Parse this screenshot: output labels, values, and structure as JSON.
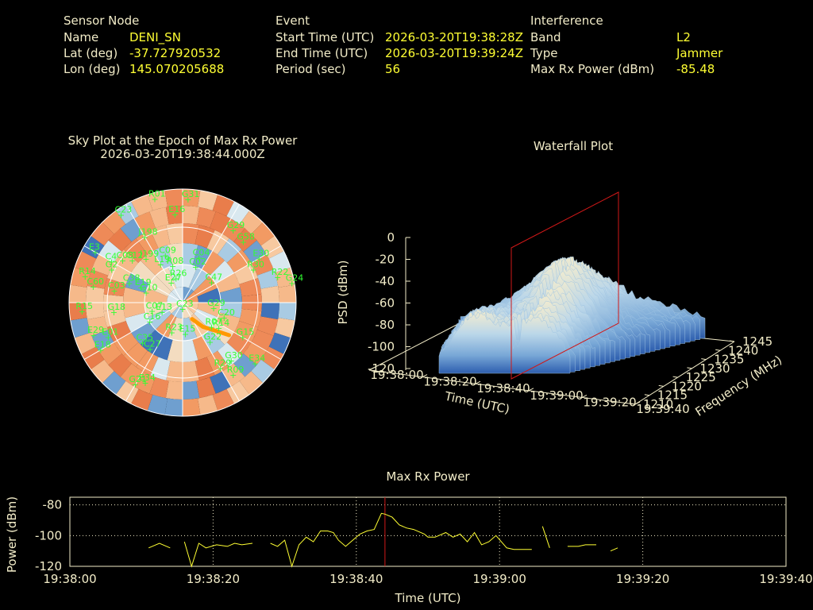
{
  "info": {
    "sensor_header": "Sensor Node",
    "name_label": "Name",
    "name_value": "DENI_SN",
    "lat_label": "Lat (deg)",
    "lat_value": "-37.727920532",
    "lon_label": "Lon (deg)",
    "lon_value": "145.070205688",
    "event_header": "Event",
    "start_label": "Start Time (UTC)",
    "start_value": "2026-03-20T19:38:28Z",
    "end_label": "End Time (UTC)",
    "end_value": "2026-03-20T19:39:24Z",
    "period_label": "Period (sec)",
    "period_value": "56",
    "interf_header": "Interference",
    "band_label": "Band",
    "band_value": "L2",
    "type_label": "Type",
    "type_value": "Jammer",
    "maxrx_label": "Max Rx Power (dBm)",
    "maxrx_value": "-85.48"
  },
  "chart_data": [
    {
      "type": "scatter",
      "title": "Sky Plot at the Epoch of Max Rx Power",
      "subtitle": "2026-03-20T19:38:44.000Z",
      "satellites": [
        {
          "id": "R01",
          "az": 345,
          "el": 5
        },
        {
          "id": "G31",
          "az": 3,
          "el": 8
        },
        {
          "id": "C23",
          "az": 325,
          "el": 5
        },
        {
          "id": "E16",
          "az": 355,
          "el": 20
        },
        {
          "id": "J198",
          "az": 330,
          "el": 30
        },
        {
          "id": "G29",
          "az": 35,
          "el": 20
        },
        {
          "id": "E3",
          "az": 300,
          "el": 10
        },
        {
          "id": "G58",
          "az": 45,
          "el": 22
        },
        {
          "id": "C4",
          "az": 300,
          "el": 25
        },
        {
          "id": "C09",
          "az": 340,
          "el": 50
        },
        {
          "id": "C04",
          "az": 20,
          "el": 52
        },
        {
          "id": "E30",
          "az": 60,
          "el": 20
        },
        {
          "id": "G2",
          "az": 295,
          "el": 28
        },
        {
          "id": "J199",
          "az": 320,
          "el": 45
        },
        {
          "id": "R08",
          "az": 345,
          "el": 60
        },
        {
          "id": "C12",
          "az": 310,
          "el": 38
        },
        {
          "id": "C02",
          "az": 20,
          "el": 60
        },
        {
          "id": "R30",
          "az": 65,
          "el": 28
        },
        {
          "id": "C08",
          "az": 305,
          "el": 32
        },
        {
          "id": "L19",
          "az": 330,
          "el": 55
        },
        {
          "id": "R26",
          "az": 345,
          "el": 70
        },
        {
          "id": "R22",
          "az": 75,
          "el": 12
        },
        {
          "id": "C38",
          "az": 290,
          "el": 45
        },
        {
          "id": "E27",
          "az": 330,
          "el": 72
        },
        {
          "id": "G24",
          "az": 80,
          "el": 2
        },
        {
          "id": "R14",
          "az": 285,
          "el": 10
        },
        {
          "id": "C03",
          "az": 280,
          "el": 35
        },
        {
          "id": "C47",
          "az": 55,
          "el": 62
        },
        {
          "id": "C60",
          "az": 280,
          "el": 18
        },
        {
          "id": "E19",
          "az": 290,
          "el": 55
        },
        {
          "id": "G10",
          "az": 285,
          "el": 60
        },
        {
          "id": "R15",
          "az": 265,
          "el": 10
        },
        {
          "id": "G18",
          "az": 262,
          "el": 35
        },
        {
          "id": "C07",
          "az": 255,
          "el": 65
        },
        {
          "id": "G29",
          "az": 100,
          "el": 65
        },
        {
          "id": "C16",
          "az": 240,
          "el": 60
        },
        {
          "id": "C20",
          "az": 110,
          "el": 55
        },
        {
          "id": "E13",
          "az": 245,
          "el": 72
        },
        {
          "id": "C23",
          "az": 180,
          "el": 85
        },
        {
          "id": "R07",
          "az": 130,
          "el": 60
        },
        {
          "id": "E29",
          "az": 250,
          "el": 15
        },
        {
          "id": "E01",
          "az": 245,
          "el": 25
        },
        {
          "id": "C35",
          "az": 225,
          "el": 45
        },
        {
          "id": "G22",
          "az": 145,
          "el": 52
        },
        {
          "id": "G15",
          "az": 120,
          "el": 35
        },
        {
          "id": "E18",
          "az": 240,
          "el": 15
        },
        {
          "id": "C27",
          "az": 215,
          "el": 45
        },
        {
          "id": "R23",
          "az": 200,
          "el": 65
        },
        {
          "id": "E15",
          "az": 175,
          "el": 65
        },
        {
          "id": "R14",
          "az": 125,
          "el": 55
        },
        {
          "id": "G30",
          "az": 140,
          "el": 30
        },
        {
          "id": "R29",
          "az": 150,
          "el": 30
        },
        {
          "id": "E34",
          "az": 130,
          "el": 15
        },
        {
          "id": "R09",
          "az": 145,
          "el": 20
        },
        {
          "id": "G21",
          "az": 210,
          "el": 15
        },
        {
          "id": "E34",
          "az": 205,
          "el": 20
        }
      ],
      "jammer_track": [
        {
          "az": 125,
          "el": 45
        },
        {
          "az": 130,
          "el": 55
        },
        {
          "az": 140,
          "el": 65
        },
        {
          "az": 150,
          "el": 75
        }
      ]
    },
    {
      "type": "heatmap",
      "title": "Waterfall Plot",
      "xlabel": "Time (UTC)",
      "ylabel": "Frequency (MHz)",
      "zlabel": "PSD (dBm)",
      "time_ticks": [
        "19:38:00",
        "19:38:20",
        "19:38:40",
        "19:39:00",
        "19:39:20",
        "19:39:40"
      ],
      "freq_ticks": [
        "1210",
        "1215",
        "1220",
        "1225",
        "1230",
        "1235",
        "1240",
        "1245"
      ],
      "psd_ticks": [
        "0",
        "-20",
        "-40",
        "-60",
        "-80",
        "-100",
        "-120"
      ],
      "marker_time": "19:38:44"
    },
    {
      "type": "line",
      "title": "Max Rx Power",
      "xlabel": "Time (UTC)",
      "ylabel": "Power (dBm)",
      "ylim": [
        -120,
        -75
      ],
      "xlim": [
        0,
        100
      ],
      "x_ticks": [
        {
          "v": 0,
          "label": "19:38:00"
        },
        {
          "v": 20,
          "label": "19:38:20"
        },
        {
          "v": 40,
          "label": "19:38:40"
        },
        {
          "v": 60,
          "label": "19:39:00"
        },
        {
          "v": 80,
          "label": "19:39:20"
        },
        {
          "v": 100,
          "label": "19:39:40"
        }
      ],
      "y_ticks": [
        -80,
        -100,
        -120
      ],
      "marker_x": 44,
      "segments": [
        [
          [
            11,
            -108
          ],
          [
            12.5,
            -105
          ],
          [
            14,
            -108
          ]
        ],
        [
          [
            16,
            -104
          ],
          [
            17,
            -120
          ],
          [
            18,
            -105
          ],
          [
            19,
            -108
          ],
          [
            20.5,
            -106
          ],
          [
            22,
            -107
          ],
          [
            23,
            -105
          ],
          [
            24,
            -106
          ],
          [
            25.5,
            -105
          ]
        ],
        [
          [
            28,
            -105
          ],
          [
            29,
            -107
          ],
          [
            30,
            -103
          ],
          [
            31,
            -120
          ],
          [
            32,
            -106
          ],
          [
            33,
            -101
          ],
          [
            34,
            -104
          ],
          [
            35,
            -97
          ],
          [
            36,
            -97
          ],
          [
            36.8,
            -98
          ],
          [
            37.5,
            -103
          ],
          [
            38.5,
            -107
          ],
          [
            39.5,
            -103
          ],
          [
            40.5,
            -99
          ],
          [
            41.5,
            -97
          ],
          [
            42.5,
            -96
          ],
          [
            43.5,
            -85.5
          ],
          [
            44,
            -86
          ],
          [
            45,
            -88
          ],
          [
            46,
            -93
          ],
          [
            47,
            -95
          ],
          [
            48,
            -96
          ],
          [
            49.5,
            -99
          ],
          [
            50,
            -101
          ],
          [
            51,
            -101
          ],
          [
            52.5,
            -98
          ],
          [
            53.5,
            -101
          ],
          [
            54.5,
            -99
          ],
          [
            55.5,
            -104
          ],
          [
            56.5,
            -98
          ],
          [
            57.5,
            -106
          ],
          [
            58.5,
            -104
          ],
          [
            59.5,
            -100
          ],
          [
            61,
            -108
          ],
          [
            62,
            -109
          ],
          [
            63,
            -109
          ],
          [
            64.5,
            -109
          ]
        ],
        [
          [
            66,
            -94
          ],
          [
            67,
            -108
          ]
        ],
        [
          [
            69.5,
            -107
          ],
          [
            71,
            -107
          ],
          [
            72,
            -106
          ],
          [
            73.5,
            -106
          ]
        ],
        [
          [
            75.5,
            -110
          ],
          [
            76.5,
            -108
          ]
        ]
      ]
    }
  ]
}
